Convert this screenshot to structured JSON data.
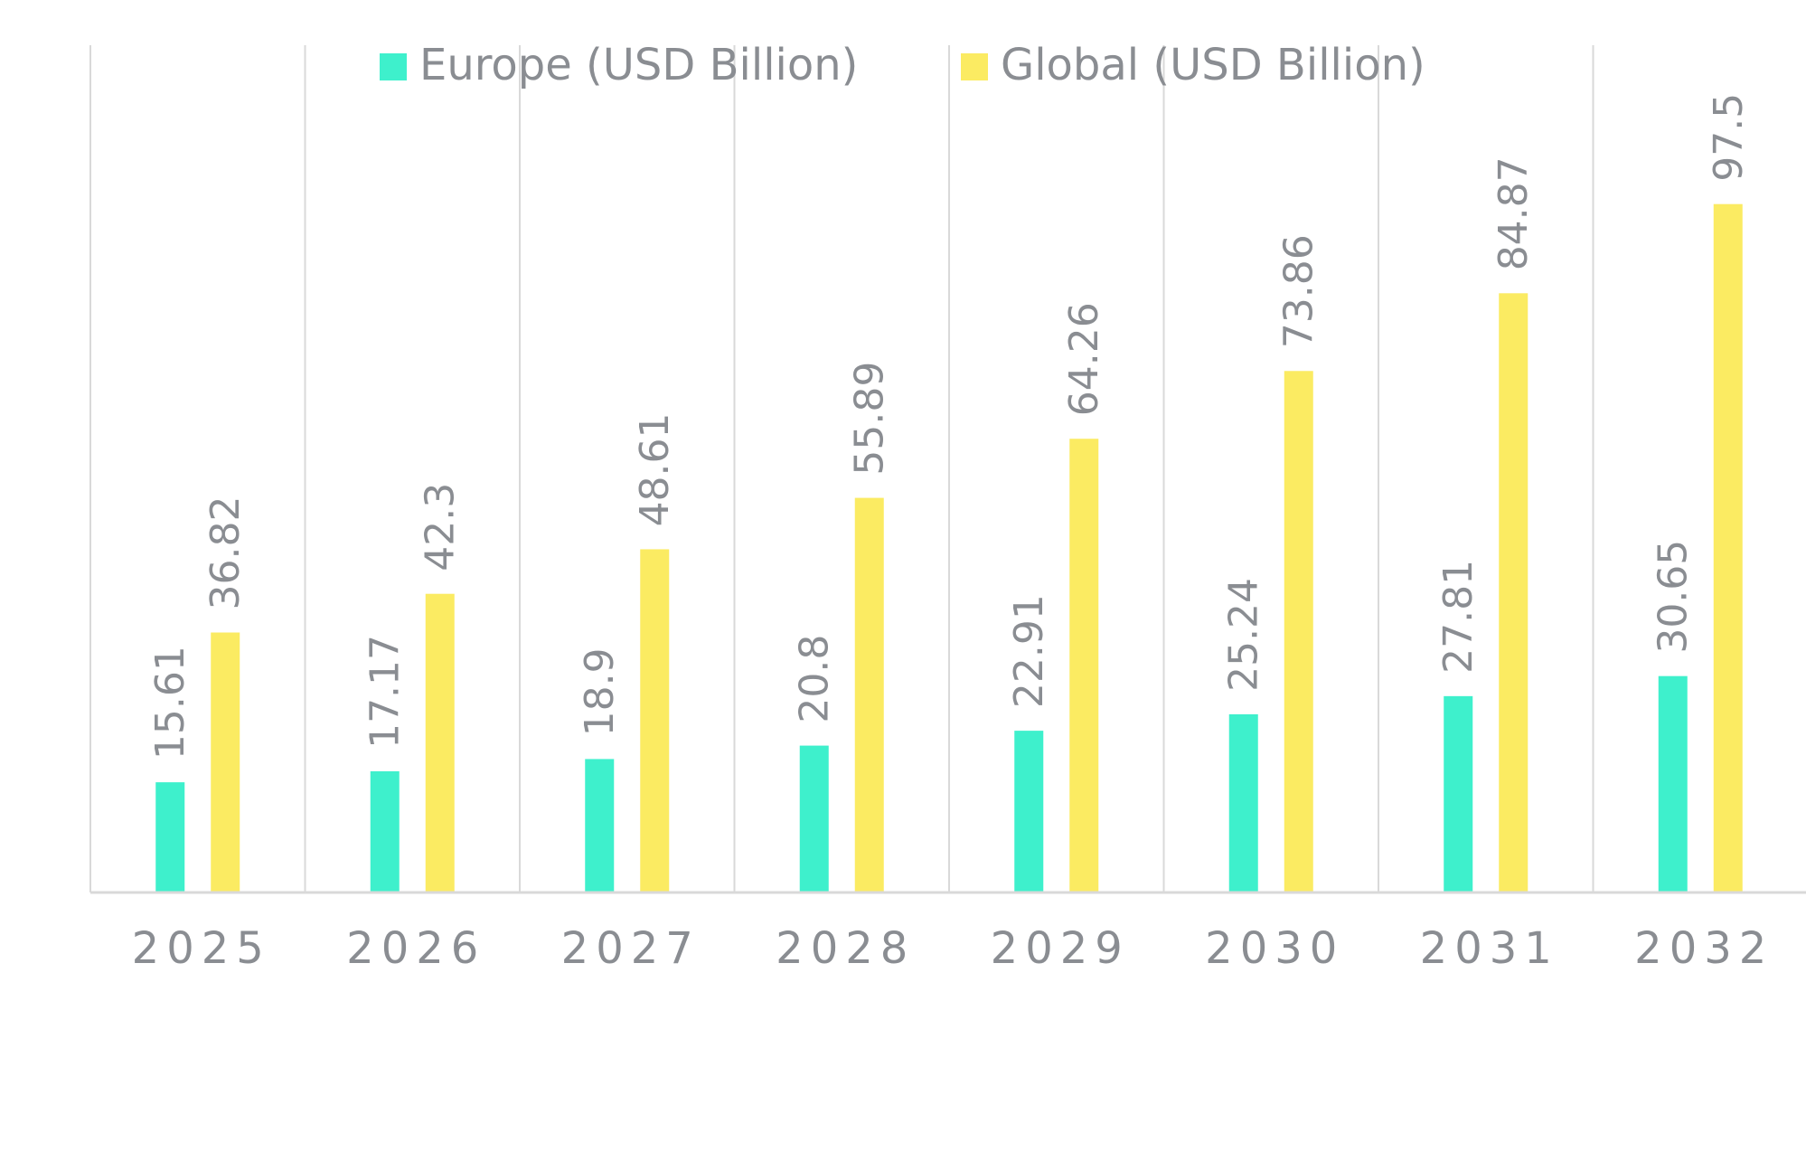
{
  "chart_data": {
    "type": "bar",
    "title": "",
    "xlabel": "",
    "ylabel": "",
    "categories": [
      "2025",
      "2026",
      "2027",
      "2028",
      "2029",
      "2030",
      "2031",
      "2032"
    ],
    "series": [
      {
        "name": "Europe (USD Billion)",
        "color": "#3ef0cc",
        "values": [
          15.61,
          17.17,
          18.9,
          20.8,
          22.91,
          25.24,
          27.81,
          30.65
        ]
      },
      {
        "name": "Global (USD Billion)",
        "color": "#fbeb62",
        "values": [
          36.82,
          42.3,
          48.61,
          55.89,
          64.26,
          73.86,
          84.87,
          97.5
        ]
      }
    ],
    "ylim": [
      0,
      120
    ],
    "grid": "vertical category separators",
    "legend_position": "top",
    "data_labels": "rotated vertical above bars",
    "axis_color": "#d9d9d9",
    "text_color": "#8a8d92"
  }
}
